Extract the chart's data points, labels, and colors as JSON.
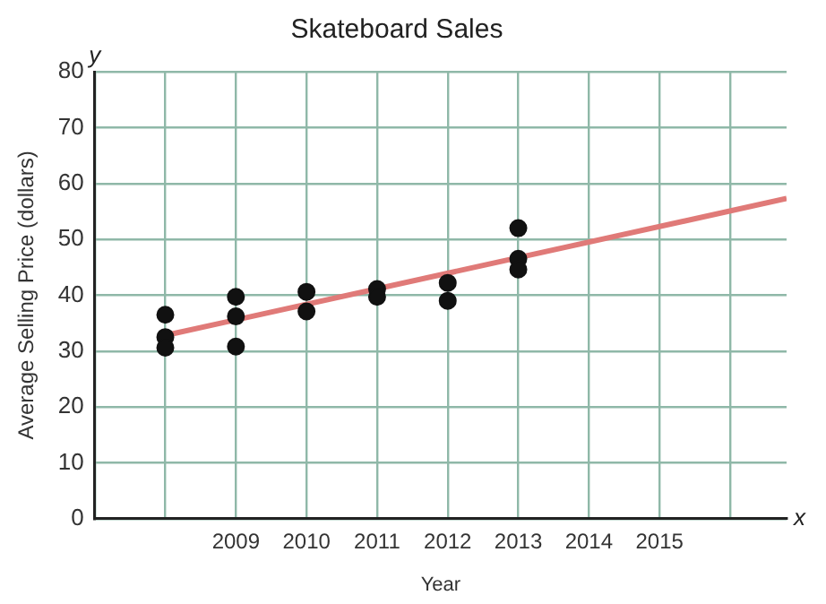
{
  "chart_data": {
    "type": "scatter",
    "title": "Skateboard Sales",
    "xlabel": "Year",
    "ylabel": "Average Selling Price (dollars)",
    "xlim": [
      2007,
      2016.8
    ],
    "ylim": [
      0,
      80
    ],
    "xticks": [
      {
        "value": 2007,
        "label": null
      },
      {
        "value": 2008,
        "label": null
      },
      2009,
      2010,
      2011,
      2012,
      2013,
      2014,
      2015,
      {
        "value": 2016,
        "label": null
      }
    ],
    "yticks": [
      0,
      10,
      20,
      30,
      40,
      50,
      60,
      70,
      80
    ],
    "grid": true,
    "legend": false,
    "annotations": [
      "y",
      "x"
    ],
    "series": [
      {
        "marker": "circle",
        "color": "#111111",
        "x": [
          2008,
          2008,
          2008,
          2009,
          2009,
          2009,
          2010,
          2010,
          2011,
          2011,
          2012,
          2012,
          2013,
          2013,
          2013
        ],
        "values": [
          36.5,
          32.5,
          30.6,
          39.7,
          36.2,
          30.8,
          40.6,
          37.1,
          41.1,
          39.7,
          42.2,
          39.0,
          52,
          46.5,
          44.6
        ]
      },
      {
        "type": "line",
        "color": "#e07a78",
        "x": [
          2008,
          2016.8
        ],
        "values": [
          32.8,
          57.3
        ]
      }
    ]
  }
}
